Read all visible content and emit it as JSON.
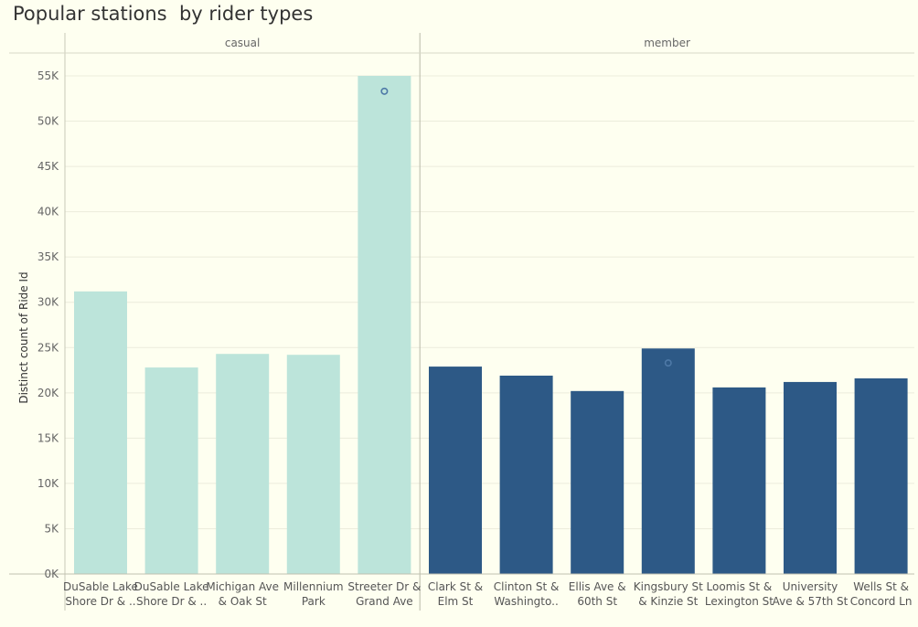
{
  "chart_data": {
    "type": "bar",
    "title": "Popular stations  by rider types",
    "ylabel": "Distinct count of Ride Id",
    "xlabel": "",
    "ylim": [
      0,
      55000
    ],
    "yticks": [
      "0K",
      "5K",
      "10K",
      "15K",
      "20K",
      "25K",
      "30K",
      "35K",
      "40K",
      "45K",
      "50K",
      "55K"
    ],
    "grid": true,
    "panels": [
      {
        "name": "casual",
        "color": "#bce4da",
        "categories": [
          [
            "DuSable Lake",
            "Shore Dr & .."
          ],
          [
            "DuSable Lake",
            "Shore Dr & .."
          ],
          [
            "Michigan Ave",
            "& Oak St"
          ],
          [
            "Millennium",
            "Park"
          ],
          [
            "Streeter Dr &",
            "Grand Ave"
          ]
        ],
        "values": [
          31200,
          22800,
          24300,
          24200,
          55000
        ],
        "markers": [
          null,
          null,
          null,
          null,
          53300
        ]
      },
      {
        "name": "member",
        "color": "#2d5986",
        "categories": [
          [
            "Clark St &",
            "Elm St"
          ],
          [
            "Clinton St &",
            "Washingto.."
          ],
          [
            "Ellis Ave &",
            "60th St"
          ],
          [
            "Kingsbury St",
            "& Kinzie St"
          ],
          [
            "Loomis St &",
            "Lexington St"
          ],
          [
            "University",
            "Ave & 57th St"
          ],
          [
            "Wells St &",
            "Concord Ln"
          ]
        ],
        "values": [
          22900,
          21900,
          20200,
          24900,
          20600,
          21200,
          21600
        ],
        "markers": [
          null,
          null,
          null,
          23300,
          null,
          null,
          null
        ]
      }
    ],
    "marker_color": "#4e79a7"
  }
}
